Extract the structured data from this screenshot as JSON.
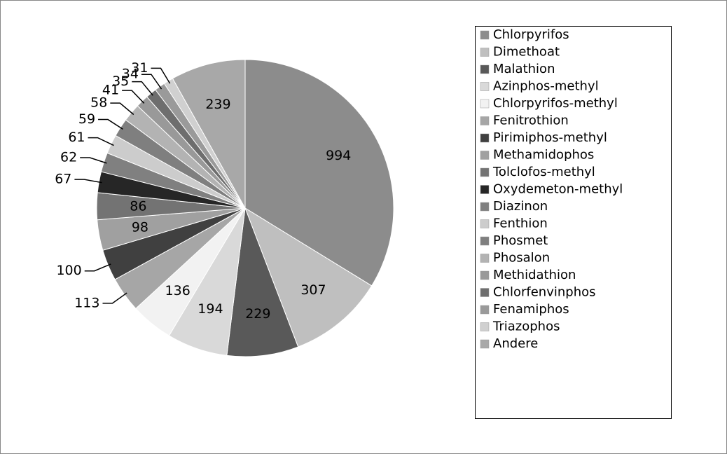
{
  "chart_data": {
    "type": "pie",
    "categories": [
      "Chlorpyrifos",
      "Dimethoat",
      "Malathion",
      "Azinphos-methyl",
      "Chlorpyrifos-methyl",
      "Fenitrothion",
      "Pirimiphos-methyl",
      "Methamidophos",
      "Tolclofos-methyl",
      "Oxydemeton-methyl",
      "Diazinon",
      "Fenthion",
      "Phosmet",
      "Phosalon",
      "Methidathion",
      "Chlorfenvinphos",
      "Fenamiphos",
      "Triazophos",
      "Andere"
    ],
    "values": [
      994,
      307,
      229,
      194,
      136,
      113,
      100,
      98,
      86,
      67,
      62,
      61,
      59,
      58,
      41,
      35,
      34,
      31,
      239
    ],
    "colors": [
      "#8c8c8c",
      "#bfbfbf",
      "#595959",
      "#d9d9d9",
      "#f2f2f2",
      "#a6a6a6",
      "#404040",
      "#a0a0a0",
      "#737373",
      "#262626",
      "#808080",
      "#cccccc",
      "#7f7f7f",
      "#b3b3b3",
      "#999999",
      "#6e6e6e",
      "#9a9a9a",
      "#d0d0d0",
      "#a8a8a8"
    ],
    "legend": "right"
  }
}
